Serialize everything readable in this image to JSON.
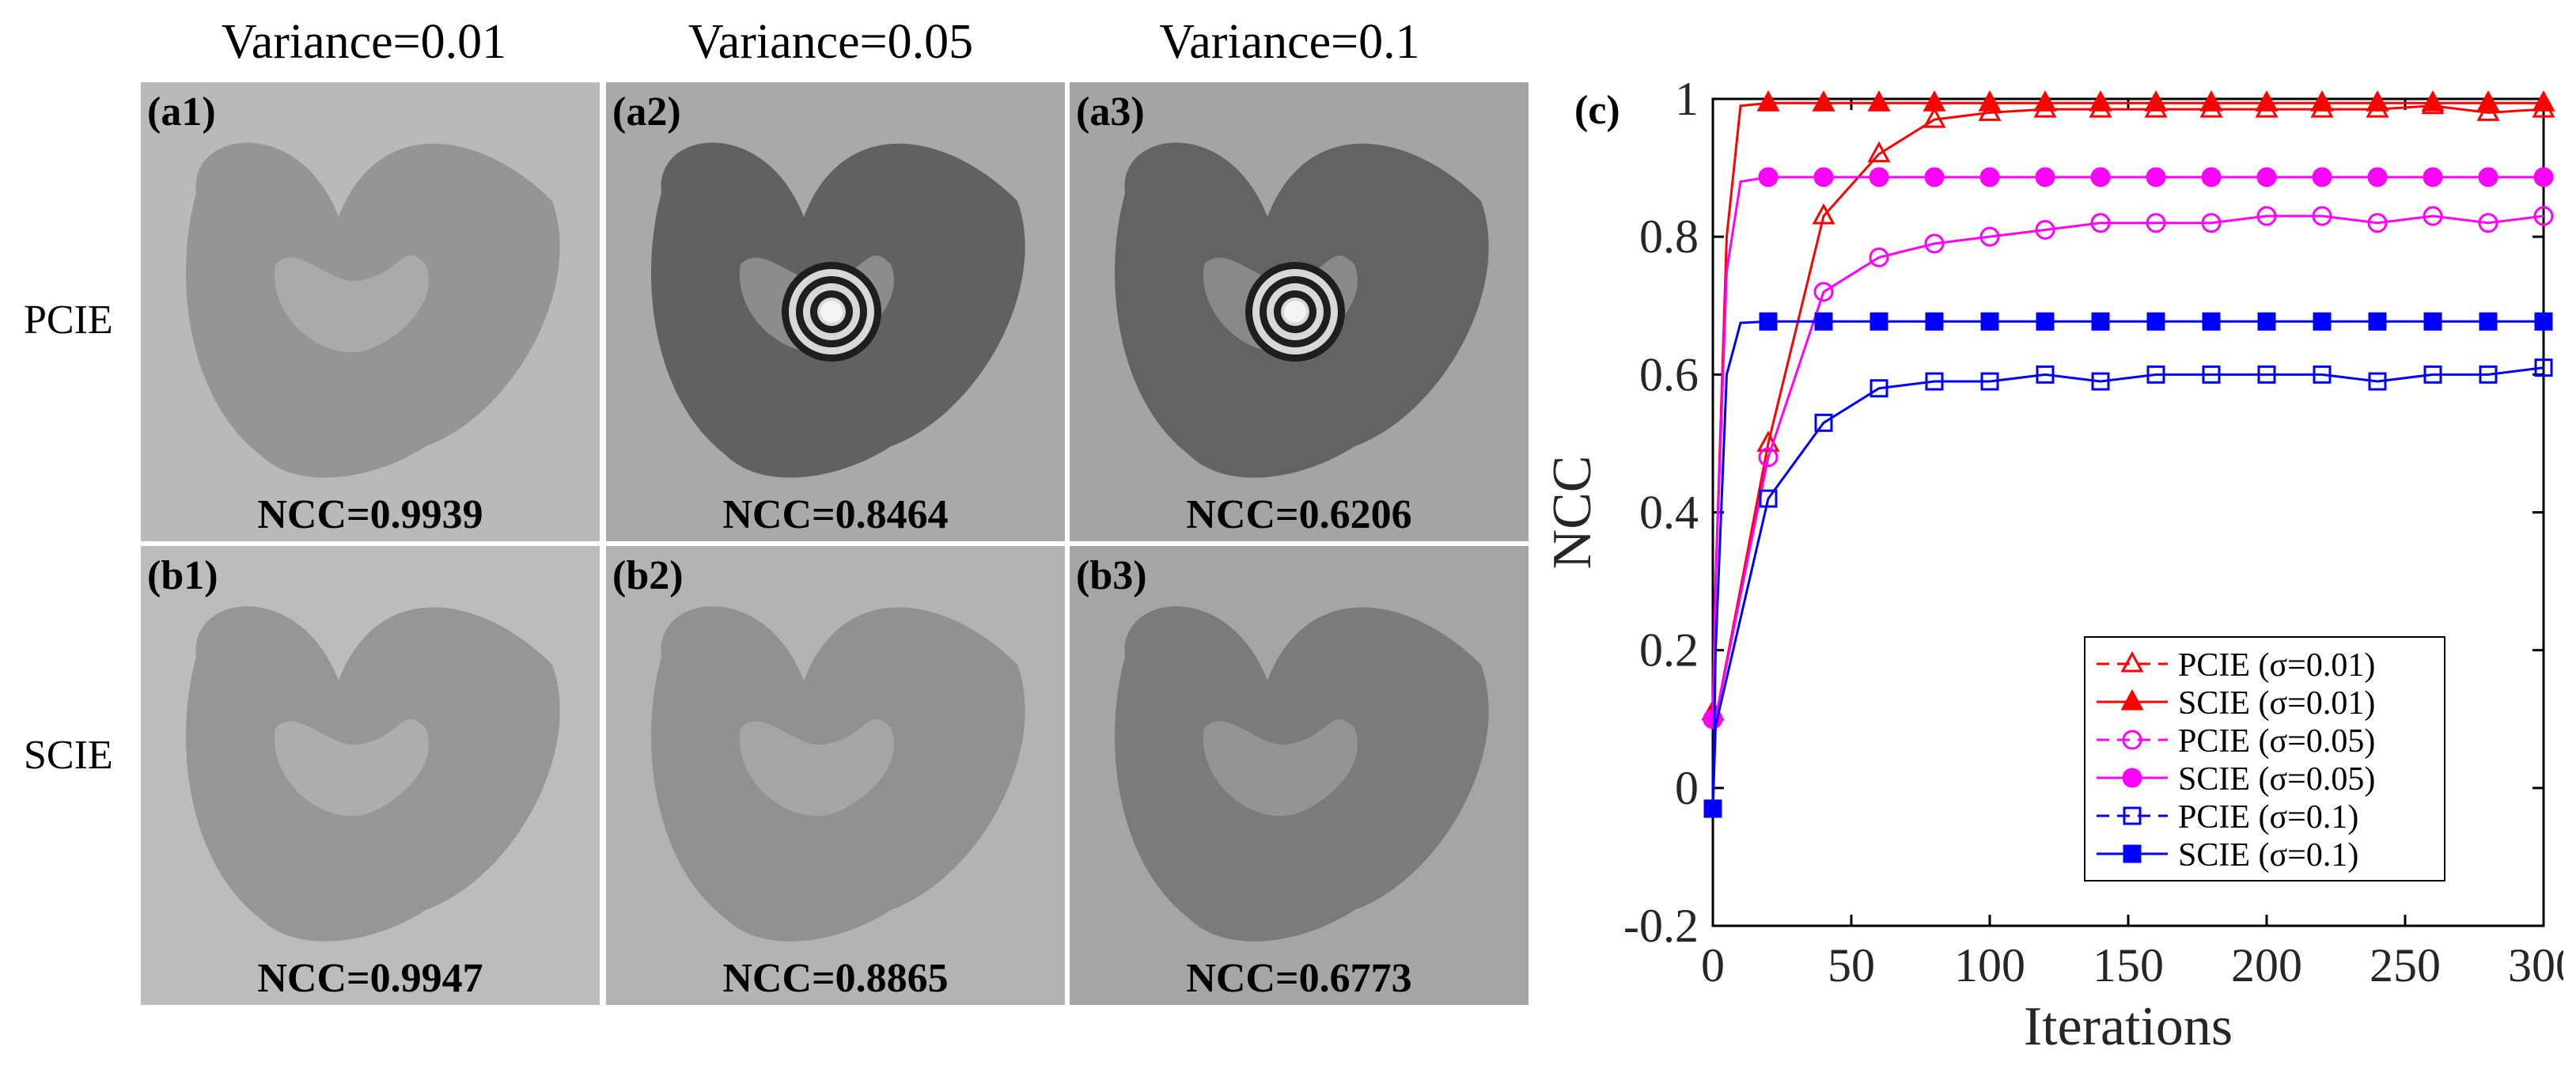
{
  "column_titles": [
    "Variance=0.01",
    "Variance=0.05",
    "Variance=0.1"
  ],
  "row_labels": [
    "PCIE",
    "SCIE"
  ],
  "tiles": [
    {
      "tag": "(a1)",
      "ncc": "NCC=0.9939",
      "shade": "#b9b9b9",
      "dark": "#8a8a8a",
      "ring": false
    },
    {
      "tag": "(a2)",
      "ncc": "NCC=0.8464",
      "shade": "#a9a9a9",
      "dark": "#4a4a4a",
      "ring": true
    },
    {
      "tag": "(a3)",
      "ncc": "NCC=0.6206",
      "shade": "#a4a4a4",
      "dark": "#4e4e4e",
      "ring": true
    },
    {
      "tag": "(b1)",
      "ncc": "NCC=0.9947",
      "shade": "#bcbcbc",
      "dark": "#8a8a8a",
      "ring": false
    },
    {
      "tag": "(b2)",
      "ncc": "NCC=0.8865",
      "shade": "#b3b3b3",
      "dark": "#858585",
      "ring": false
    },
    {
      "tag": "(b3)",
      "ncc": "NCC=0.6773",
      "shade": "#a5a5a5",
      "dark": "#6e6e6e",
      "ring": false
    }
  ],
  "panel_label": "(c)",
  "chart_data": {
    "type": "line",
    "title": "",
    "xlabel": "Iterations",
    "ylabel": "NCC",
    "xlim": [
      0,
      300
    ],
    "ylim": [
      -0.2,
      1
    ],
    "xticks": [
      "0",
      "50",
      "100",
      "150",
      "200",
      "250",
      "300"
    ],
    "yticks": [
      "-0.2",
      "0",
      "0.2",
      "0.4",
      "0.6",
      "0.8",
      "1"
    ],
    "legend_position": "bottom-right",
    "series": [
      {
        "name": "PCIE (σ=0.01)",
        "color": "#ff0000",
        "marker": "triangle-open",
        "dashed": true,
        "x": [
          0,
          1,
          20,
          40,
          60,
          80,
          100,
          120,
          140,
          160,
          180,
          200,
          220,
          240,
          260,
          280,
          300
        ],
        "y": [
          0.11,
          0.1,
          0.5,
          0.83,
          0.92,
          0.97,
          0.98,
          0.985,
          0.985,
          0.985,
          0.985,
          0.985,
          0.985,
          0.985,
          0.99,
          0.98,
          0.985
        ]
      },
      {
        "name": "SCIE (σ=0.01)",
        "color": "#ff0000",
        "marker": "triangle-filled",
        "dashed": false,
        "x": [
          0,
          1,
          5,
          10,
          20,
          40,
          60,
          80,
          100,
          120,
          140,
          160,
          180,
          200,
          220,
          240,
          260,
          280,
          300
        ],
        "y": [
          0.11,
          0.3,
          0.8,
          0.99,
          0.994,
          0.994,
          0.994,
          0.994,
          0.994,
          0.994,
          0.994,
          0.994,
          0.994,
          0.994,
          0.994,
          0.994,
          0.994,
          0.994,
          0.994
        ]
      },
      {
        "name": "PCIE (σ=0.05)",
        "color": "#ff00ff",
        "marker": "circle-open",
        "dashed": true,
        "x": [
          0,
          1,
          20,
          40,
          60,
          80,
          100,
          120,
          140,
          160,
          180,
          200,
          220,
          240,
          260,
          280,
          300
        ],
        "y": [
          0.1,
          0.1,
          0.48,
          0.72,
          0.77,
          0.79,
          0.8,
          0.81,
          0.82,
          0.82,
          0.82,
          0.83,
          0.83,
          0.82,
          0.83,
          0.82,
          0.83
        ]
      },
      {
        "name": "SCIE (σ=0.05)",
        "color": "#ff00ff",
        "marker": "circle-filled",
        "dashed": false,
        "x": [
          0,
          1,
          5,
          10,
          20,
          40,
          60,
          80,
          100,
          120,
          140,
          160,
          180,
          200,
          220,
          240,
          260,
          280,
          300
        ],
        "y": [
          0.1,
          0.3,
          0.75,
          0.88,
          0.8865,
          0.8865,
          0.8865,
          0.8865,
          0.8865,
          0.8865,
          0.8865,
          0.8865,
          0.8865,
          0.8865,
          0.8865,
          0.8865,
          0.8865,
          0.8865,
          0.8865
        ]
      },
      {
        "name": "PCIE (σ=0.1)",
        "color": "#0000ff",
        "marker": "square-open",
        "dashed": true,
        "x": [
          0,
          1,
          20,
          40,
          60,
          80,
          100,
          120,
          140,
          160,
          180,
          200,
          220,
          240,
          260,
          280,
          300
        ],
        "y": [
          -0.03,
          0.09,
          0.42,
          0.53,
          0.58,
          0.59,
          0.59,
          0.6,
          0.59,
          0.6,
          0.6,
          0.6,
          0.6,
          0.59,
          0.6,
          0.6,
          0.61
        ]
      },
      {
        "name": "SCIE (σ=0.1)",
        "color": "#0000ff",
        "marker": "square-filled",
        "dashed": false,
        "x": [
          0,
          1,
          5,
          10,
          20,
          40,
          60,
          80,
          100,
          120,
          140,
          160,
          180,
          200,
          220,
          240,
          260,
          280,
          300
        ],
        "y": [
          -0.03,
          0.2,
          0.6,
          0.675,
          0.677,
          0.677,
          0.677,
          0.677,
          0.677,
          0.677,
          0.677,
          0.677,
          0.677,
          0.677,
          0.677,
          0.677,
          0.677,
          0.677,
          0.677
        ]
      }
    ]
  }
}
